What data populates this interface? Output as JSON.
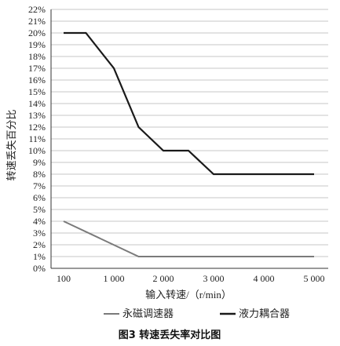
{
  "chart_data": {
    "type": "line",
    "caption": "图3  转速丢失率对比图",
    "xlabel": "输入转速/（r/min）",
    "ylabel": "转速丢失百分比",
    "x_ticks": [
      "100",
      "1 000",
      "2 000",
      "3 000",
      "4 000",
      "5 000"
    ],
    "x_tick_values": [
      100,
      1000,
      2000,
      3000,
      4000,
      5000
    ],
    "y_ticks": [
      "0%",
      "1%",
      "2%",
      "3%",
      "4%",
      "5%",
      "6%",
      "7%",
      "8%",
      "9%",
      "10%",
      "11%",
      "12%",
      "13%",
      "14%",
      "15%",
      "16%",
      "17%",
      "18%",
      "19%",
      "20%",
      "21%",
      "22%"
    ],
    "ylim": [
      0,
      22
    ],
    "grid": true,
    "legend_position": "bottom",
    "series": [
      {
        "name": "永磁调速器",
        "color": "#7a7a7a",
        "points": [
          [
            100,
            4
          ],
          [
            1500,
            1
          ],
          [
            5000,
            1
          ]
        ]
      },
      {
        "name": "液力耦合器",
        "color": "#1a1a1a",
        "points": [
          [
            100,
            20
          ],
          [
            500,
            20
          ],
          [
            1000,
            17
          ],
          [
            1500,
            12
          ],
          [
            2000,
            10
          ],
          [
            2500,
            10
          ],
          [
            3000,
            8
          ],
          [
            5000,
            8
          ]
        ]
      }
    ]
  }
}
